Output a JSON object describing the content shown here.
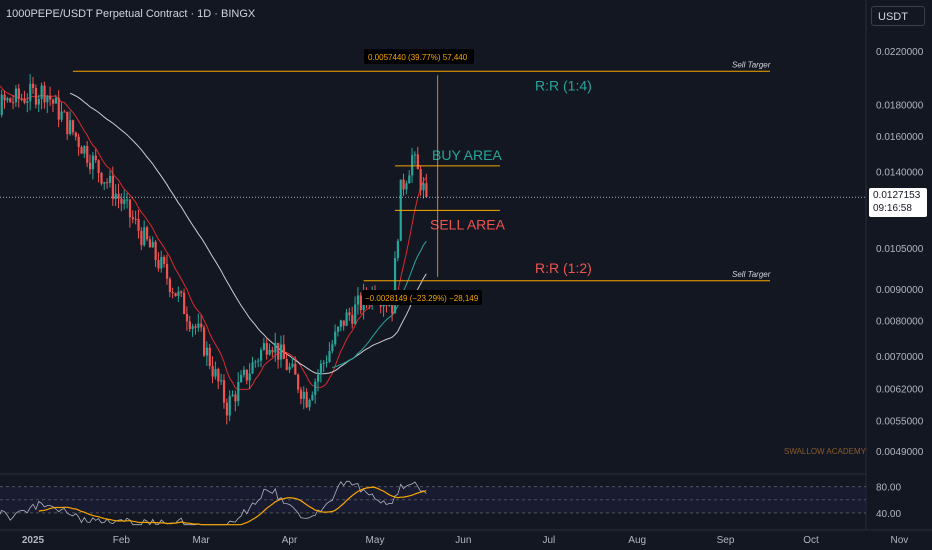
{
  "header": {
    "title": "1000PEPE/USDT Perpetual Contract · 1D · BINGX",
    "currency_button": "USDT"
  },
  "price_tag": {
    "price": "0.0127153",
    "countdown": "09:16:58"
  },
  "watermark": "SWALLOW ACADEMY",
  "colors": {
    "up": "#26a69a",
    "down": "#ef5350",
    "target_line": "#f7a600",
    "ma_red": "#ff2d2d",
    "ma_white": "#e0e0e0",
    "ma_green": "#26a69a",
    "rsi_line": "#b0b3c2",
    "rsi_ma": "#f7a600"
  },
  "chart_data": {
    "type": "candlestick",
    "symbol": "1000PEPE/USDT",
    "timeframe": "1D",
    "y_scale": "log",
    "ylim": [
      0.0046,
      0.024
    ],
    "y_ticks": [
      "0.0220000",
      "0.0180000",
      "0.0160000",
      "0.0140000",
      "0.0105000",
      "0.0090000",
      "0.0080000",
      "0.0070000",
      "0.0062000",
      "0.0055000",
      "0.0049000"
    ],
    "x_ticks": [
      "2025",
      "Feb",
      "Mar",
      "Apr",
      "May",
      "Jun",
      "Jul",
      "Aug",
      "Sep",
      "Oct",
      "Nov"
    ],
    "candles_keypoints": [
      {
        "date": "2024-12-06",
        "close": 0.02
      },
      {
        "date": "2024-12-10",
        "close": 0.0215
      },
      {
        "date": "2024-12-20",
        "close": 0.018
      },
      {
        "date": "2025-01-05",
        "close": 0.019
      },
      {
        "date": "2025-01-20",
        "close": 0.015
      },
      {
        "date": "2025-02-01",
        "close": 0.0125
      },
      {
        "date": "2025-02-15",
        "close": 0.0098
      },
      {
        "date": "2025-03-01",
        "close": 0.0075
      },
      {
        "date": "2025-03-10",
        "close": 0.0058
      },
      {
        "date": "2025-03-25",
        "close": 0.0075
      },
      {
        "date": "2025-04-07",
        "close": 0.006
      },
      {
        "date": "2025-04-20",
        "close": 0.008
      },
      {
        "date": "2025-05-01",
        "close": 0.009
      },
      {
        "date": "2025-05-07",
        "close": 0.0085
      },
      {
        "date": "2025-05-10",
        "close": 0.013
      },
      {
        "date": "2025-05-14",
        "close": 0.0148
      },
      {
        "date": "2025-05-19",
        "close": 0.0127
      }
    ],
    "last_price": 0.0127153,
    "annotations": {
      "buy_area": {
        "label": "BUY AREA",
        "price": 0.0143
      },
      "sell_area": {
        "label": "SELL AREA",
        "price": 0.0121
      },
      "target_upper": {
        "label": "Sell Targer",
        "price": 0.0204,
        "rr": "R:R (1:4)"
      },
      "target_lower": {
        "label": "Sell Targer",
        "price": 0.00929,
        "rr": "R:R (1:2)"
      },
      "measure_upper": "0.0057440 (39.77%) 57,440",
      "measure_lower": "−0.0028149 (−23.29%) −28,149"
    },
    "rsi": {
      "levels": [
        "80.00",
        "40.00"
      ]
    }
  }
}
